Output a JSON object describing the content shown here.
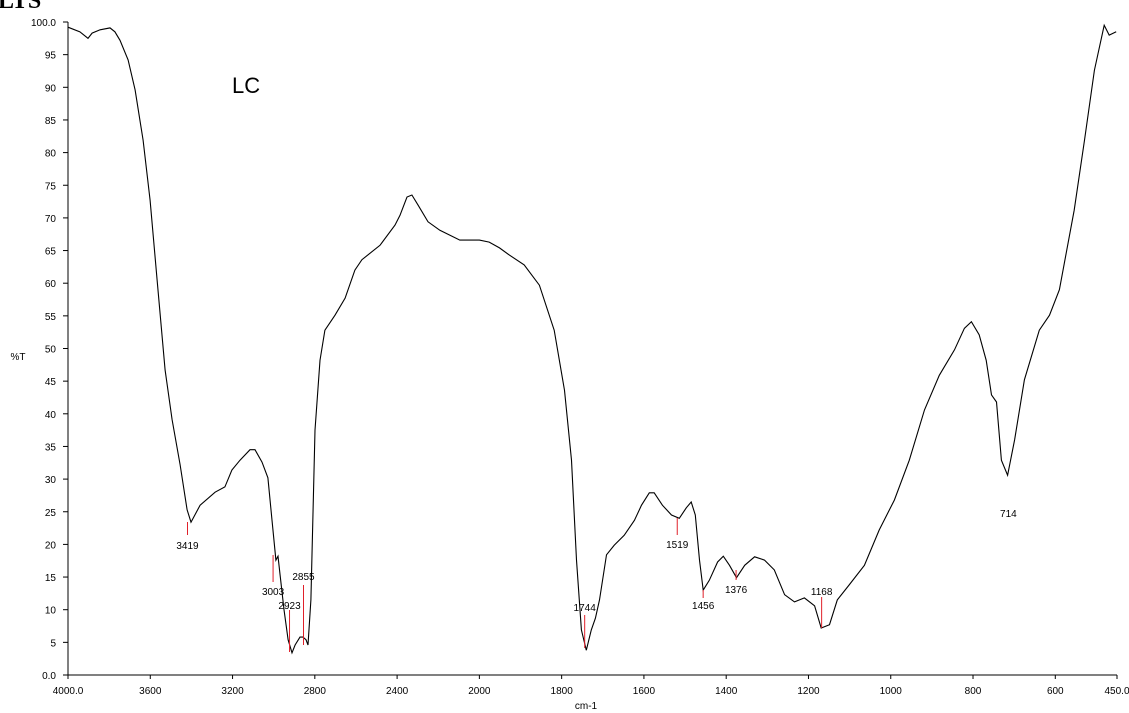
{
  "chart_data": {
    "type": "line",
    "title": "LTS",
    "annotation": "LC",
    "x_label": "cm-1",
    "y_label": "%T",
    "xlim": [
      4000,
      450
    ],
    "ylim": [
      0,
      100
    ],
    "x_break": 2000,
    "x_break_stretch": 2,
    "xticks": [
      {
        "value": 4000,
        "label": "4000.0"
      },
      3600,
      3200,
      2800,
      2400,
      2000,
      1800,
      1600,
      1400,
      1200,
      1000,
      800,
      600,
      {
        "value": 450,
        "label": "450.0"
      }
    ],
    "yticks": [
      {
        "value": 0,
        "label": "0.0"
      },
      5,
      10,
      15,
      20,
      25,
      30,
      35,
      40,
      45,
      50,
      55,
      60,
      65,
      70,
      75,
      80,
      85,
      90,
      95,
      {
        "value": 100,
        "label": "100.0"
      }
    ],
    "grid": false,
    "series": [
      {
        "name": "LC",
        "color": "#000000",
        "x": [
          4000,
          3942,
          3903,
          3883,
          3844,
          3796,
          3772,
          3747,
          3708,
          3674,
          3635,
          3601,
          3567,
          3528,
          3494,
          3455,
          3421,
          3402,
          3358,
          3285,
          3237,
          3203,
          3164,
          3115,
          3091,
          3057,
          3028,
          3008,
          2989,
          2979,
          2969,
          2950,
          2930,
          2911,
          2896,
          2872,
          2858,
          2843,
          2833,
          2819,
          2799,
          2775,
          2751,
          2702,
          2653,
          2605,
          2571,
          2483,
          2410,
          2386,
          2352,
          2328,
          2299,
          2250,
          2192,
          2095,
          2046,
          2000,
          1976,
          1951,
          1927,
          1891,
          1854,
          1818,
          1793,
          1776,
          1764,
          1752,
          1740,
          1728,
          1718,
          1708,
          1691,
          1672,
          1648,
          1623,
          1606,
          1587,
          1575,
          1555,
          1533,
          1514,
          1497,
          1485,
          1475,
          1465,
          1456,
          1441,
          1421,
          1407,
          1392,
          1375,
          1355,
          1331,
          1307,
          1283,
          1258,
          1234,
          1210,
          1185,
          1169,
          1149,
          1130,
          1101,
          1064,
          1028,
          991,
          955,
          918,
          882,
          845,
          821,
          804,
          785,
          768,
          755,
          743,
          731,
          716,
          699,
          675,
          639,
          614,
          590,
          554,
          529,
          505,
          481,
          469,
          452
        ],
        "values": [
          99.2,
          98.5,
          97.5,
          98.3,
          98.8,
          99.1,
          98.5,
          97.2,
          94.2,
          89.6,
          81.9,
          72.7,
          60.5,
          46.7,
          39.1,
          32.2,
          25.3,
          23.4,
          26.0,
          28.0,
          28.8,
          31.4,
          32.9,
          34.5,
          34.5,
          32.6,
          30.2,
          23.7,
          17.6,
          18.2,
          15.3,
          10.0,
          5.4,
          3.4,
          4.6,
          5.8,
          5.8,
          5.4,
          4.6,
          11.5,
          37.5,
          48.2,
          52.8,
          55.1,
          57.7,
          62.0,
          63.6,
          65.8,
          68.9,
          70.4,
          73.2,
          73.5,
          72.0,
          69.4,
          68.1,
          66.6,
          66.6,
          66.6,
          66.3,
          65.4,
          64.3,
          62.8,
          59.7,
          52.8,
          43.6,
          32.9,
          17.6,
          6.9,
          3.8,
          6.9,
          8.7,
          11.5,
          18.4,
          19.9,
          21.4,
          23.7,
          26.0,
          27.9,
          27.9,
          26.0,
          24.5,
          24.0,
          25.6,
          26.5,
          24.5,
          17.6,
          13.0,
          14.5,
          17.3,
          18.2,
          16.8,
          14.9,
          16.8,
          18.1,
          17.6,
          16.1,
          12.3,
          11.2,
          11.8,
          10.6,
          7.2,
          7.7,
          11.5,
          13.8,
          16.8,
          22.2,
          26.8,
          32.9,
          40.6,
          45.9,
          49.8,
          53.1,
          54.1,
          52.1,
          48.2,
          42.9,
          41.8,
          32.9,
          30.6,
          36.0,
          45.2,
          52.8,
          55.1,
          59.0,
          71.2,
          81.9,
          92.6,
          99.5,
          98.0,
          98.5
        ]
      }
    ],
    "peaks": [
      3419,
      3003,
      2923,
      2855,
      1744,
      1519,
      1456,
      1376,
      1168,
      714
    ],
    "peak_color": "#e0202a"
  }
}
